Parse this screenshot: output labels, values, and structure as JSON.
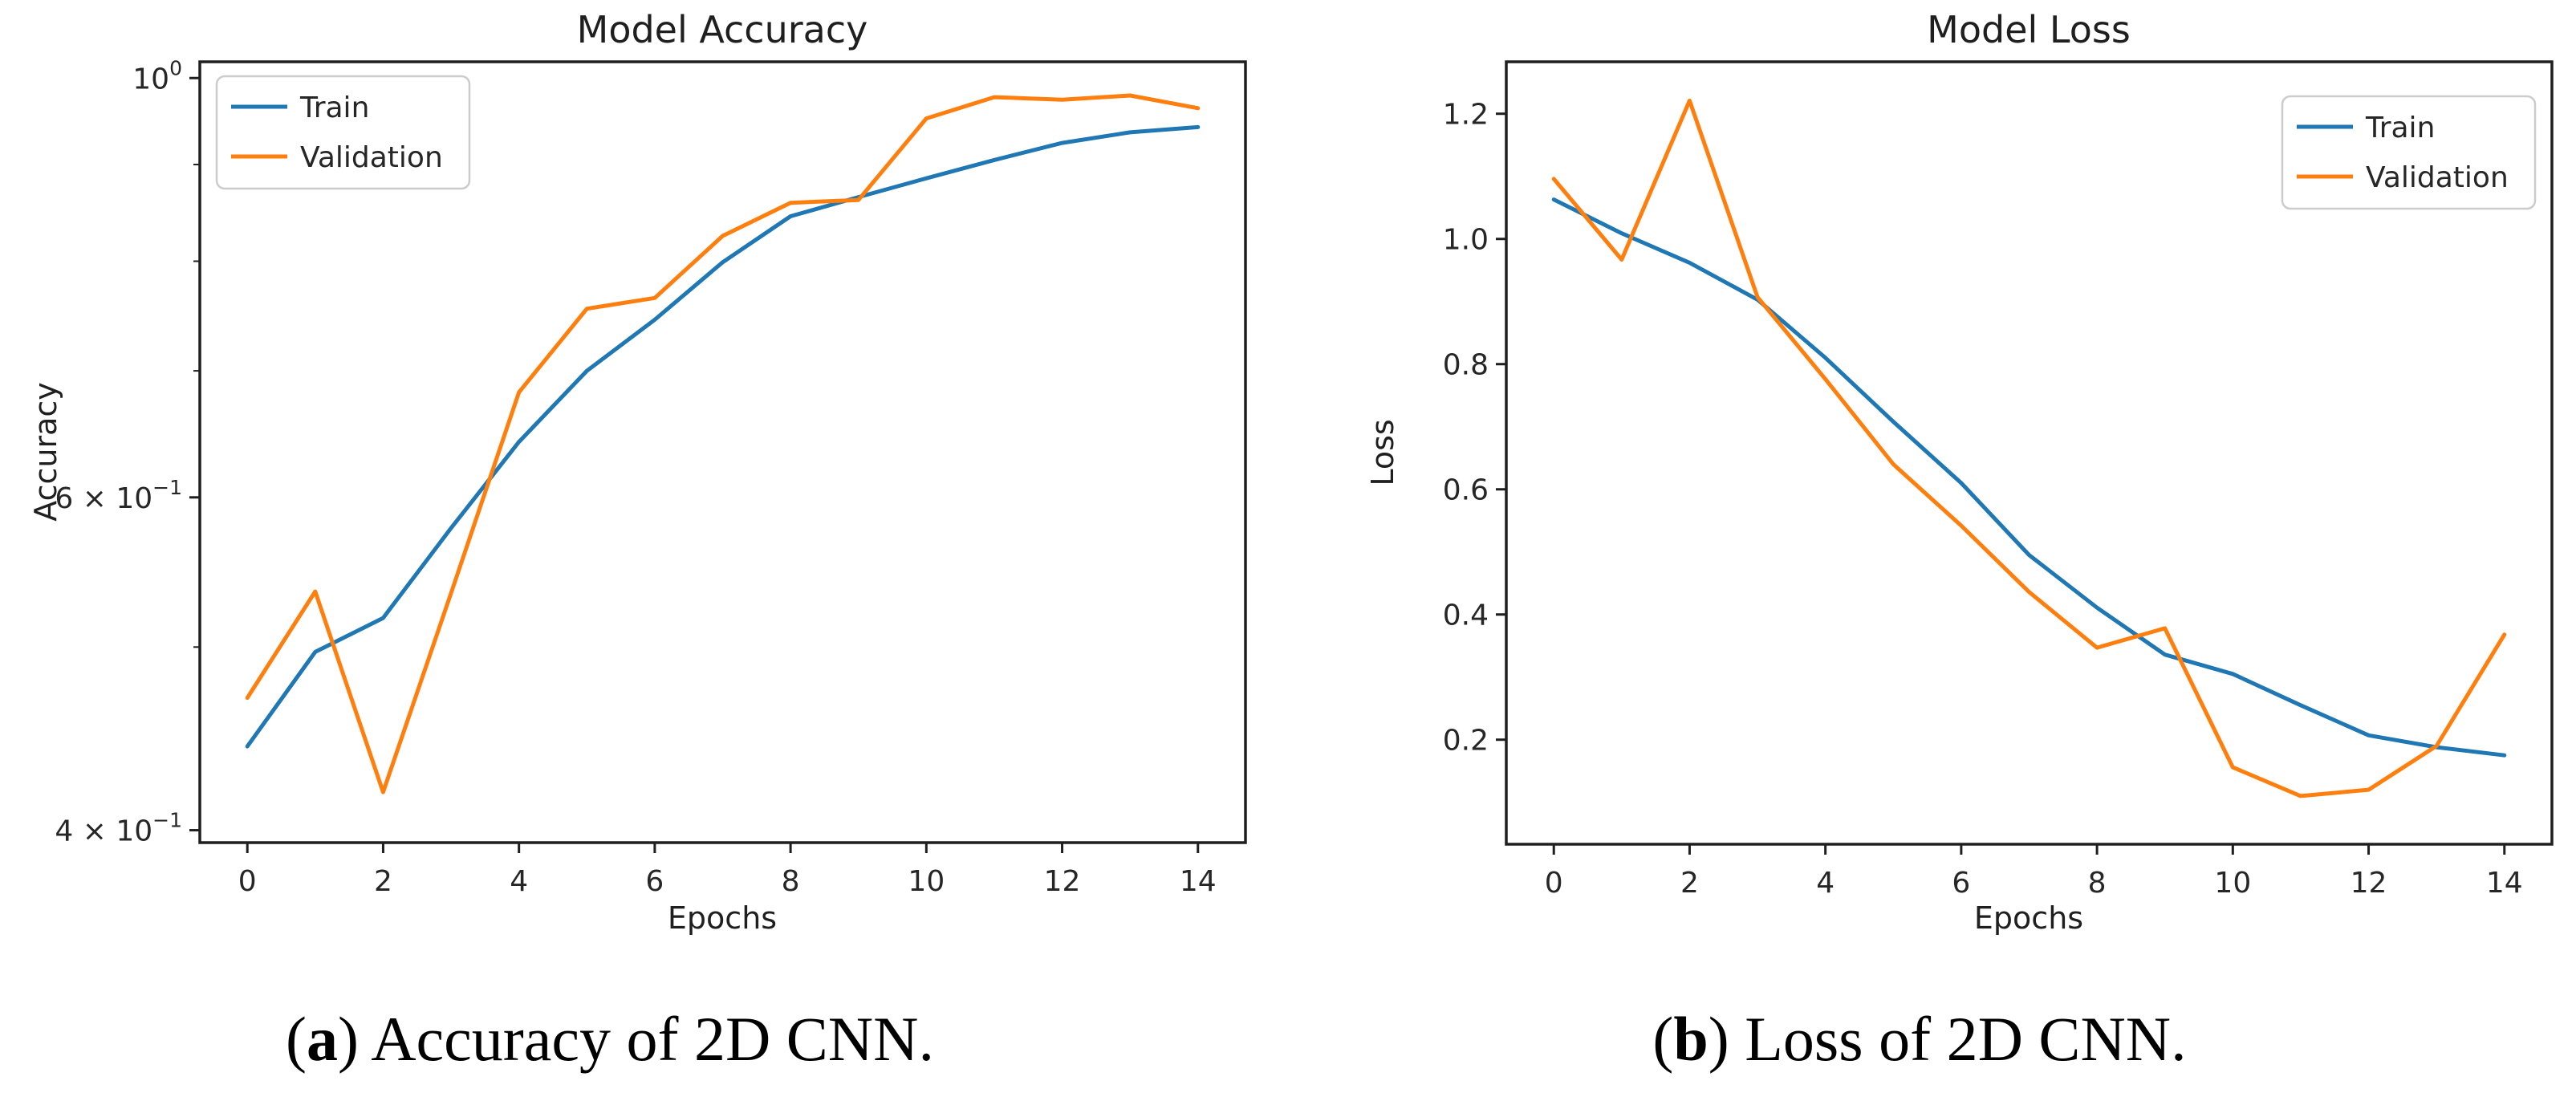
{
  "page": {
    "background": "#ffffff"
  },
  "colors": {
    "train": "#1f77b4",
    "validation": "#ff7f0e",
    "axis": "#1f1f1f",
    "tick_text": "#262626",
    "legend_border": "#cccccc",
    "legend_fill": "#ffffff"
  },
  "chart_data": [
    {
      "id": "accuracy",
      "type": "line",
      "title": "Model Accuracy",
      "xlabel": "Epochs",
      "ylabel": "Accuracy",
      "yscale": "log",
      "xlim": [
        -0.7,
        14.7
      ],
      "ylim": [
        0.394,
        1.02
      ],
      "grid": false,
      "legend_position": "upper-left",
      "xticks": [
        0,
        2,
        4,
        6,
        8,
        10,
        12,
        14
      ],
      "yticks": [
        {
          "v": 1.0,
          "coeff": "",
          "base": "10",
          "exp": "0"
        },
        {
          "v": 0.6,
          "coeff": "6 × ",
          "base": "10",
          "exp": "−1"
        },
        {
          "v": 0.4,
          "coeff": "4 × ",
          "base": "10",
          "exp": "−1"
        }
      ],
      "yminorticks": [
        0.9,
        0.8,
        0.7,
        0.5
      ],
      "x": [
        0,
        1,
        2,
        3,
        4,
        5,
        6,
        7,
        8,
        9,
        10,
        11,
        12,
        13,
        14
      ],
      "series": [
        {
          "name": "Train",
          "color_key": "train",
          "values": [
            0.443,
            0.497,
            0.518,
            0.578,
            0.642,
            0.7,
            0.745,
            0.799,
            0.845,
            0.865,
            0.885,
            0.905,
            0.924,
            0.936,
            0.942
          ]
        },
        {
          "name": "Validation",
          "color_key": "validation",
          "values": [
            0.47,
            0.535,
            0.419,
            0.534,
            0.682,
            0.755,
            0.765,
            0.825,
            0.859,
            0.862,
            0.952,
            0.977,
            0.974,
            0.979,
            0.964
          ]
        }
      ]
    },
    {
      "id": "loss",
      "type": "line",
      "title": "Model Loss",
      "xlabel": "Epochs",
      "ylabel": "Loss",
      "yscale": "linear",
      "xlim": [
        -0.7,
        14.7
      ],
      "ylim": [
        0.033,
        1.283
      ],
      "grid": false,
      "legend_position": "upper-right",
      "xticks": [
        0,
        2,
        4,
        6,
        8,
        10,
        12,
        14
      ],
      "yticks": [
        {
          "v": 1.2,
          "label": "1.2"
        },
        {
          "v": 1.0,
          "label": "1.0"
        },
        {
          "v": 0.8,
          "label": "0.8"
        },
        {
          "v": 0.6,
          "label": "0.6"
        },
        {
          "v": 0.4,
          "label": "0.4"
        },
        {
          "v": 0.2,
          "label": "0.2"
        }
      ],
      "yminorticks": [],
      "x": [
        0,
        1,
        2,
        3,
        4,
        5,
        6,
        7,
        8,
        9,
        10,
        11,
        12,
        13,
        14
      ],
      "series": [
        {
          "name": "Train",
          "color_key": "train",
          "values": [
            1.063,
            1.009,
            0.962,
            0.903,
            0.81,
            0.708,
            0.61,
            0.495,
            0.411,
            0.336,
            0.305,
            0.255,
            0.207,
            0.188,
            0.175
          ]
        },
        {
          "name": "Validation",
          "color_key": "validation",
          "values": [
            1.096,
            0.967,
            1.221,
            0.907,
            0.776,
            0.64,
            0.542,
            0.436,
            0.347,
            0.378,
            0.156,
            0.11,
            0.12,
            0.19,
            0.368
          ]
        }
      ]
    }
  ],
  "captions": [
    {
      "pre": "(",
      "bold": "a",
      "post": ") ",
      "text": "Accuracy of 2D CNN."
    },
    {
      "pre": "(",
      "bold": "b",
      "post": ") ",
      "text": "Loss of 2D CNN."
    }
  ]
}
